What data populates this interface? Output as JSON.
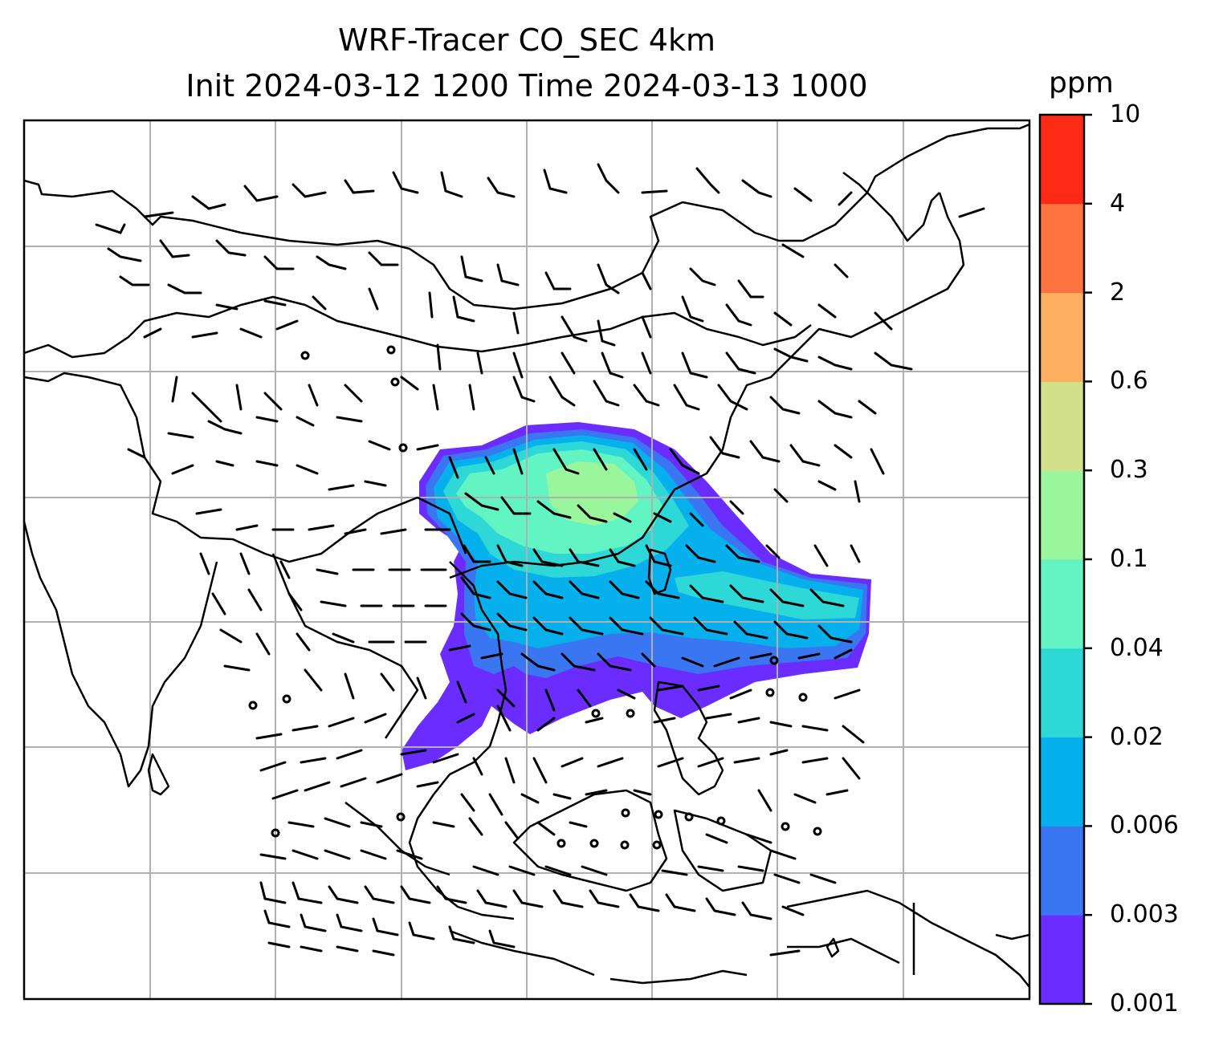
{
  "title": {
    "line1": "WRF-Tracer CO_SEC 4km",
    "line2": "Init 2024-03-12 1200 Time 2024-03-13 1000"
  },
  "colorbar": {
    "unit": "ppm",
    "levels": [
      "0.001",
      "0.003",
      "0.006",
      "0.02",
      "0.04",
      "0.1",
      "0.3",
      "0.6",
      "2",
      "4",
      "10"
    ],
    "colors": [
      "#6a2cff",
      "#3a76f2",
      "#06b0ec",
      "#2ed8d6",
      "#62f4c2",
      "#9af69c",
      "#d2e08a",
      "#fdb060",
      "#ff7340",
      "#ff2a16"
    ]
  },
  "chart_data": {
    "type": "heatmap",
    "title": "WRF-Tracer CO_SEC 4km Init 2024-03-12 1200 Time 2024-03-13 1000",
    "variable": "CO_SEC tracer concentration",
    "unit": "ppm",
    "contour_levels": [
      0.001,
      0.003,
      0.006,
      0.02,
      0.04,
      0.1,
      0.3,
      0.6,
      2,
      4,
      10
    ],
    "max_level_present": "0.3",
    "overlays": [
      "coastlines and country borders",
      "wind barbs",
      "lat/lon gridlines"
    ],
    "grid": true,
    "legend": "colorbar right"
  }
}
